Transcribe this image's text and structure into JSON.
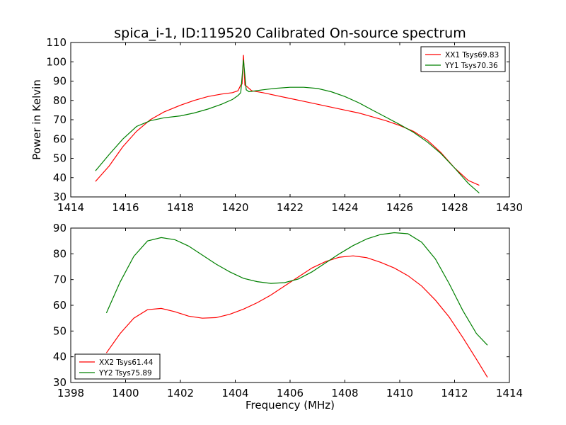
{
  "title": "spica_i-1, ID:119520 Calibrated On-source spectrum",
  "chart_data": [
    {
      "type": "line",
      "xlabel": "",
      "ylabel": "Power in Kelvin",
      "xlim": [
        1414,
        1430
      ],
      "ylim": [
        30,
        110
      ],
      "xticks": [
        "1414",
        "1416",
        "1418",
        "1420",
        "1422",
        "1424",
        "1426",
        "1428",
        "1430"
      ],
      "yticks": [
        "30",
        "40",
        "50",
        "60",
        "70",
        "80",
        "90",
        "100",
        "110"
      ],
      "legend_position": "top-right",
      "grid": false,
      "series": [
        {
          "name": "XX1 Tsys69.83",
          "color": "#ff0000",
          "x": [
            1414.9,
            1415.4,
            1415.9,
            1416.4,
            1416.9,
            1417.4,
            1418.0,
            1418.5,
            1419.0,
            1419.5,
            1419.9,
            1420.1,
            1420.2,
            1420.25,
            1420.3,
            1420.35,
            1420.4,
            1420.6,
            1421.0,
            1421.5,
            1422.0,
            1422.5,
            1423.0,
            1423.5,
            1424.0,
            1424.5,
            1425.0,
            1425.5,
            1426.0,
            1426.5,
            1427.0,
            1427.5,
            1428.0,
            1428.5,
            1428.9
          ],
          "y": [
            38,
            46,
            56,
            64,
            70,
            74,
            77.5,
            80,
            82,
            83.3,
            84,
            85,
            88,
            88.5,
            103.5,
            88,
            87.5,
            85,
            84,
            82.5,
            81,
            79.5,
            78,
            76.5,
            75,
            73.5,
            71.5,
            69.5,
            67,
            64,
            59.5,
            53,
            45,
            38.5,
            36
          ]
        },
        {
          "name": "YY1 Tsys70.36",
          "color": "#008000",
          "x": [
            1414.9,
            1415.4,
            1415.9,
            1416.4,
            1416.9,
            1417.4,
            1418.0,
            1418.5,
            1419.0,
            1419.5,
            1419.9,
            1420.1,
            1420.2,
            1420.3,
            1420.4,
            1420.5,
            1421.0,
            1421.5,
            1422.0,
            1422.5,
            1423.0,
            1423.5,
            1424.0,
            1424.5,
            1425.0,
            1425.5,
            1426.0,
            1426.5,
            1427.0,
            1427.5,
            1428.0,
            1428.5,
            1428.9
          ],
          "y": [
            43.5,
            52,
            60,
            66.5,
            69.5,
            71,
            72,
            73.5,
            75.5,
            78,
            80.5,
            82.5,
            84,
            101,
            85.5,
            84.5,
            85.5,
            86.3,
            86.8,
            86.8,
            86.2,
            84.5,
            82,
            78.8,
            75,
            71.3,
            67.5,
            63.5,
            58.5,
            52.5,
            45,
            37,
            32
          ]
        }
      ]
    },
    {
      "type": "line",
      "xlabel": "Frequency (MHz)",
      "ylabel": "",
      "xlim": [
        1398,
        1414
      ],
      "ylim": [
        30,
        90
      ],
      "xticks": [
        "1398",
        "1400",
        "1402",
        "1404",
        "1406",
        "1408",
        "1410",
        "1412",
        "1414"
      ],
      "yticks": [
        "30",
        "40",
        "50",
        "60",
        "70",
        "80",
        "90"
      ],
      "legend_position": "bottom-left",
      "grid": false,
      "series": [
        {
          "name": "XX2 Tsys61.44",
          "color": "#ff0000",
          "x": [
            1399.3,
            1399.8,
            1400.3,
            1400.8,
            1401.3,
            1401.8,
            1402.3,
            1402.8,
            1403.3,
            1403.8,
            1404.3,
            1404.8,
            1405.3,
            1405.8,
            1406.3,
            1406.8,
            1407.3,
            1407.8,
            1408.3,
            1408.8,
            1409.3,
            1409.8,
            1410.3,
            1410.8,
            1411.3,
            1411.8,
            1412.3,
            1412.8,
            1413.2
          ],
          "y": [
            41.5,
            49,
            55,
            58.3,
            58.8,
            57.5,
            55.8,
            55,
            55.2,
            56.5,
            58.5,
            61,
            64,
            67.5,
            71,
            74.5,
            77,
            78.7,
            79.2,
            78.5,
            76.7,
            74.5,
            71.5,
            67.5,
            62,
            55.5,
            47.5,
            39,
            32
          ]
        },
        {
          "name": "YY2 Tsys75.89",
          "color": "#008000",
          "x": [
            1399.3,
            1399.8,
            1400.3,
            1400.8,
            1401.3,
            1401.8,
            1402.3,
            1402.8,
            1403.3,
            1403.8,
            1404.3,
            1404.8,
            1405.3,
            1405.8,
            1406.3,
            1406.8,
            1407.3,
            1407.8,
            1408.3,
            1408.8,
            1409.3,
            1409.8,
            1410.3,
            1410.8,
            1411.3,
            1411.8,
            1412.3,
            1412.8,
            1413.2
          ],
          "y": [
            57,
            69,
            79,
            85,
            86.3,
            85.5,
            83,
            79.5,
            76,
            73,
            70.5,
            69.2,
            68.5,
            68.8,
            70.2,
            73,
            76.5,
            80,
            83.2,
            85.8,
            87.5,
            88.2,
            87.8,
            84.5,
            78,
            68.5,
            58,
            49,
            44.5
          ]
        }
      ]
    }
  ]
}
